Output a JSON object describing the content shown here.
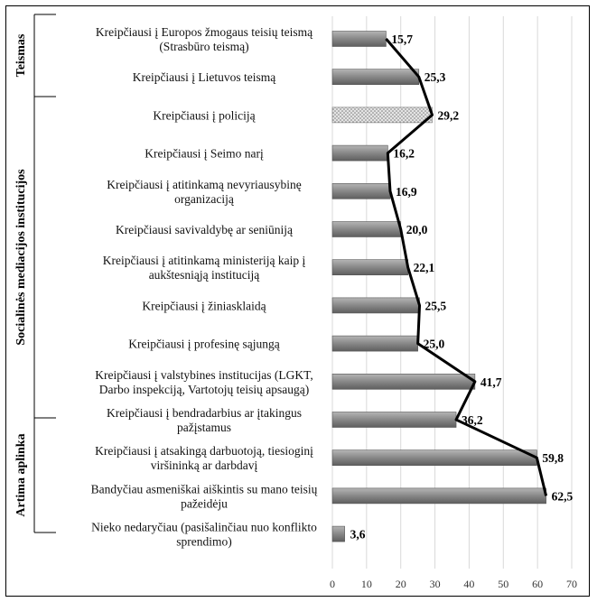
{
  "chart_data": {
    "type": "bar",
    "orientation": "horizontal",
    "x_ticks": [
      0,
      10,
      20,
      30,
      40,
      50,
      60,
      70
    ],
    "xlim": [
      0,
      70
    ],
    "grid": true,
    "colors": {
      "bar": "#8a8a8a",
      "bar_highlight": "#d6d6d6",
      "line": "#000000",
      "grid": "#d9d9d9"
    },
    "groups": [
      {
        "label": "Teismas",
        "first": 0,
        "last": 1
      },
      {
        "label": "Socialinės mediacijos institucijos",
        "first": 2,
        "last": 9
      },
      {
        "label": "Artima aplinka",
        "first": 10,
        "last": 12
      }
    ],
    "categories": [
      {
        "lines": [
          "Kreipčiausi į Europos žmogaus teisių teismą",
          "(Strasbūro teismą)"
        ],
        "value": 15.7,
        "value_label": "15,7",
        "highlight": false
      },
      {
        "lines": [
          "Kreipčiausi į Lietuvos teismą"
        ],
        "value": 25.3,
        "value_label": "25,3",
        "highlight": false
      },
      {
        "lines": [
          "Kreipčiausi į policiją"
        ],
        "value": 29.2,
        "value_label": "29,2",
        "highlight": true
      },
      {
        "lines": [
          "Kreipčiausi į Seimo narį"
        ],
        "value": 16.2,
        "value_label": "16,2",
        "highlight": false
      },
      {
        "lines": [
          "Kreipčiausi į atitinkamą nevyriausybinę",
          "organizaciją"
        ],
        "value": 16.9,
        "value_label": "16,9",
        "highlight": false
      },
      {
        "lines": [
          "Kreipčiausi savivaldybę ar seniūniją"
        ],
        "value": 20.0,
        "value_label": "20,0",
        "highlight": false
      },
      {
        "lines": [
          "Kreipčiausi į atitinkamą ministeriją kaip į",
          "aukštesniąją instituciją"
        ],
        "value": 22.1,
        "value_label": "22,1",
        "highlight": false
      },
      {
        "lines": [
          "Kreipčiausi į žiniasklaidą"
        ],
        "value": 25.5,
        "value_label": "25,5",
        "highlight": false
      },
      {
        "lines": [
          "Kreipčiausi į profesinę sąjungą"
        ],
        "value": 25.0,
        "value_label": "25,0",
        "highlight": false
      },
      {
        "lines": [
          "Kreipčiausi į valstybines institucijas (LGKT,",
          "Darbo inspekciją, Vartotojų teisių apsaugą)"
        ],
        "value": 41.7,
        "value_label": "41,7",
        "highlight": false
      },
      {
        "lines": [
          "Kreipčiausi į bendradarbius ar įtakingus",
          "pažįstamus"
        ],
        "value": 36.2,
        "value_label": "36,2",
        "highlight": false
      },
      {
        "lines": [
          "Kreipčiausi į atsakingą darbuotoją, tiesioginį",
          "viršininką ar darbdavį"
        ],
        "value": 59.8,
        "value_label": "59,8",
        "highlight": false
      },
      {
        "lines": [
          "Bandyčiau asmeniškai aiškintis su mano teisių",
          "pažeidėju"
        ],
        "value": 62.5,
        "value_label": "62,5",
        "highlight": false
      },
      {
        "lines": [
          "Nieko nedaryčiau (pasišalinčiau nuo konflikto",
          "sprendimo)"
        ],
        "value": 3.6,
        "value_label": "3,6",
        "highlight": false
      }
    ]
  }
}
